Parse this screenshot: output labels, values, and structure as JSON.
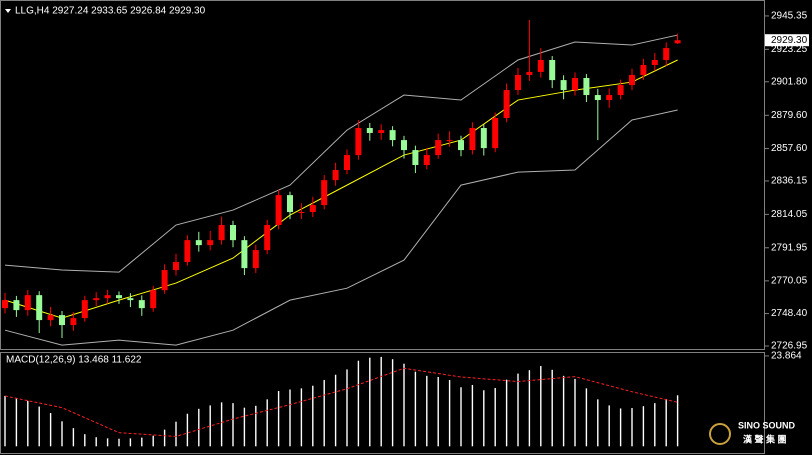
{
  "chart_data": [
    {
      "type": "candlestick",
      "header": "LLG,H4  2927.24 2933.65 2926.84 2929.30",
      "last_price_label": "2929.30",
      "up_color": "#ff0000",
      "down_color": "#98fb98",
      "open": [
        2752.0,
        2757.3,
        2750.7,
        2760.6,
        2744.1,
        2747.4,
        2740.8,
        2745.4,
        2757.3,
        2758.6,
        2760.6,
        2758.6,
        2757.3,
        2752.0,
        2763.9,
        2777.2,
        2782.5,
        2797.0,
        2793.7,
        2797.0,
        2807.0,
        2797.0,
        2778.5,
        2790.4,
        2807.0,
        2826.8,
        2815.6,
        2815.6,
        2820.2,
        2836.7,
        2843.4,
        2853.3,
        2871.2,
        2867.9,
        2869.8,
        2863.2,
        2856.6,
        2846.7,
        2853.3,
        2863.2,
        2863.2,
        2856.6,
        2871.2,
        2857.9,
        2877.8,
        2896.3,
        2906.3,
        2908.3,
        2916.2,
        2902.9,
        2896.3,
        2904.3,
        2893.0,
        2889.7,
        2893.0,
        2899.6,
        2906.3,
        2912.9,
        2916.2,
        2927.24
      ],
      "high": [
        2762.0,
        2760.1,
        2764.0,
        2763.2,
        2752.8,
        2750.1,
        2749.3,
        2760.2,
        2762.5,
        2764.1,
        2763.0,
        2761.9,
        2760.4,
        2766.8,
        2781.0,
        2788.0,
        2800.2,
        2802.5,
        2803.1,
        2812.6,
        2809.8,
        2799.6,
        2794.0,
        2810.5,
        2830.3,
        2829.0,
        2821.4,
        2825.7,
        2840.0,
        2848.1,
        2857.0,
        2876.4,
        2874.5,
        2873.6,
        2872.4,
        2866.0,
        2859.5,
        2858.0,
        2867.5,
        2869.0,
        2866.1,
        2875.0,
        2873.8,
        2881.4,
        2900.6,
        2911.0,
        2942.7,
        2924.0,
        2918.8,
        2906.1,
        2908.0,
        2906.9,
        2897.1,
        2897.4,
        2903.2,
        2910.4,
        2917.0,
        2920.8,
        2927.9,
        2933.65
      ],
      "low": [
        2748.5,
        2746.2,
        2747.0,
        2735.5,
        2740.0,
        2732.2,
        2737.0,
        2743.0,
        2753.4,
        2755.0,
        2754.8,
        2752.7,
        2746.9,
        2749.6,
        2761.5,
        2773.6,
        2780.1,
        2789.4,
        2790.2,
        2794.0,
        2792.3,
        2773.9,
        2775.3,
        2787.6,
        2804.1,
        2810.9,
        2811.0,
        2812.3,
        2817.4,
        2833.0,
        2840.6,
        2850.2,
        2862.8,
        2863.4,
        2859.1,
        2851.0,
        2841.4,
        2843.9,
        2850.8,
        2858.7,
        2852.5,
        2853.7,
        2853.0,
        2855.2,
        2875.0,
        2893.1,
        2902.4,
        2904.5,
        2897.6,
        2890.2,
        2892.7,
        2888.4,
        2863.2,
        2884.6,
        2890.1,
        2896.2,
        2903.0,
        2909.1,
        2912.4,
        2926.84
      ],
      "close": [
        2757.3,
        2750.7,
        2760.6,
        2744.1,
        2747.4,
        2740.8,
        2745.4,
        2757.3,
        2758.6,
        2760.6,
        2758.6,
        2757.3,
        2752.0,
        2763.9,
        2777.2,
        2782.5,
        2797.0,
        2793.7,
        2797.0,
        2807.0,
        2797.0,
        2778.5,
        2790.4,
        2807.0,
        2826.8,
        2815.6,
        2815.6,
        2820.2,
        2836.7,
        2843.4,
        2853.3,
        2871.2,
        2867.9,
        2869.8,
        2863.2,
        2856.6,
        2846.7,
        2853.3,
        2863.2,
        2863.2,
        2856.6,
        2871.2,
        2857.9,
        2877.8,
        2896.3,
        2906.3,
        2908.3,
        2916.2,
        2902.9,
        2896.3,
        2904.3,
        2893.0,
        2889.7,
        2893.0,
        2899.6,
        2906.3,
        2912.9,
        2916.2,
        2924.1,
        2929.3
      ],
      "overlays": [
        {
          "color": "#b0b0b0",
          "x": [
            0,
            5,
            10,
            15,
            20,
            25,
            30,
            35,
            40,
            45,
            50,
            55,
            59
          ],
          "values": [
            2780.5,
            2777.2,
            2775.8,
            2807.0,
            2816.9,
            2833.4,
            2869.8,
            2893.0,
            2889.7,
            2916.2,
            2928.1,
            2926.1,
            2932.7
          ]
        },
        {
          "color": "#b0b0b0",
          "x": [
            0,
            5,
            10,
            15,
            20,
            25,
            30,
            35,
            40,
            45,
            50,
            55,
            59
          ],
          "values": [
            2737.4,
            2727.5,
            2730.8,
            2727.5,
            2737.4,
            2757.3,
            2765.2,
            2783.8,
            2833.4,
            2842.0,
            2843.4,
            2876.5,
            2883.1
          ]
        },
        {
          "color": "#ffff00",
          "x": [
            0,
            5,
            10,
            15,
            20,
            25,
            30,
            35,
            40,
            45,
            50,
            55,
            59
          ],
          "values": [
            2757.3,
            2745.4,
            2757.3,
            2768.6,
            2785.1,
            2813.6,
            2833.4,
            2853.3,
            2863.2,
            2889.7,
            2896.3,
            2901.6,
            2916.2
          ]
        }
      ],
      "ylim": [
        2724.3,
        2955.9
      ],
      "yticks": [
        2945.35,
        2923.25,
        {
          "value": 2901.8,
          "label": "2901.80"
        },
        {
          "value": 2879.6,
          "label": "2879.60"
        },
        {
          "value": 2857.6,
          "label": "2857.60"
        },
        2836.15,
        2814.05,
        2791.95,
        2770.05,
        {
          "value": 2748.4,
          "label": "2748.40"
        },
        2726.95
      ]
    },
    {
      "type": "macd",
      "title": "MACD(12,26,9) 13.468 11.622",
      "color": "#ffffff",
      "values": [
        13.3,
        12.6,
        12.0,
        10.5,
        8.8,
        6.6,
        4.8,
        3.2,
        2.4,
        2.1,
        2.0,
        2.1,
        2.3,
        2.8,
        4.4,
        6.5,
        8.6,
        9.9,
        10.8,
        11.6,
        11.4,
        10.2,
        10.7,
        12.4,
        14.6,
        15.0,
        15.3,
        16.0,
        17.5,
        18.9,
        20.3,
        22.6,
        23.4,
        23.6,
        23.0,
        21.8,
        19.7,
        18.6,
        18.3,
        17.5,
        15.6,
        16.2,
        14.8,
        15.4,
        17.6,
        19.2,
        20.1,
        21.2,
        20.2,
        18.6,
        17.8,
        15.3,
        12.4,
        10.8,
        10.0,
        10.1,
        10.6,
        11.4,
        12.5,
        13.468
      ],
      "signal": {
        "color": "#ff2020",
        "x": [
          0,
          5,
          10,
          15,
          20,
          25,
          30,
          35,
          40,
          45,
          50,
          55,
          59
        ],
        "values": [
          13.3,
          10.2,
          3.6,
          2.6,
          7.2,
          11.0,
          15.2,
          20.6,
          18.3,
          17.1,
          18.4,
          14.4,
          11.622
        ]
      },
      "ylim": [
        -1.5,
        24.9
      ],
      "yticks": [
        23.864
      ]
    }
  ],
  "watermark": {
    "brand": "SINO SOUND",
    "sub": "漢 聲 集 團"
  }
}
